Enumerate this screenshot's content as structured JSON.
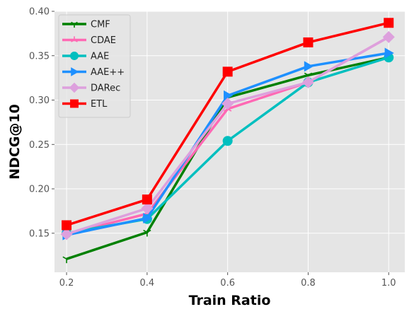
{
  "chart_data": {
    "type": "line",
    "title": "",
    "xlabel": "Train Ratio",
    "ylabel": "NDCG@10",
    "x": [
      0.2,
      0.4,
      0.6,
      0.8,
      1.0
    ],
    "xlim": [
      0.17,
      1.04
    ],
    "ylim": [
      0.106,
      0.4
    ],
    "xticks": [
      0.2,
      0.4,
      0.6,
      0.8,
      1.0
    ],
    "xtick_labels": [
      "0.2",
      "0.4",
      "0.6",
      "0.8",
      "1.0"
    ],
    "yticks": [
      0.15,
      0.2,
      0.25,
      0.3,
      0.35,
      0.4
    ],
    "ytick_labels": [
      "0.15",
      "0.20",
      "0.25",
      "0.30",
      "0.35",
      "0.40"
    ],
    "grid": true,
    "legend_position": "top-left",
    "series": [
      {
        "name": "CMF",
        "color": "#008000",
        "marker": "tri_down",
        "values": [
          0.121,
          0.151,
          0.303,
          0.328,
          0.348
        ]
      },
      {
        "name": "CDAE",
        "color": "#ff69b4",
        "marker": "tri_up",
        "values": [
          0.149,
          0.172,
          0.29,
          0.32,
          0.371
        ]
      },
      {
        "name": "AAE",
        "color": "#00bfbf",
        "marker": "circle",
        "values": [
          0.15,
          0.166,
          0.254,
          0.32,
          0.348
        ]
      },
      {
        "name": "AAE++",
        "color": "#1e90ff",
        "marker": "triangle-right",
        "values": [
          0.148,
          0.167,
          0.305,
          0.338,
          0.353
        ]
      },
      {
        "name": "DARec",
        "color": "#dda0dd",
        "marker": "diamond",
        "values": [
          0.149,
          0.178,
          0.296,
          0.32,
          0.371
        ]
      },
      {
        "name": "ETL",
        "color": "#ff0000",
        "marker": "square",
        "values": [
          0.159,
          0.188,
          0.332,
          0.365,
          0.387
        ]
      }
    ]
  }
}
